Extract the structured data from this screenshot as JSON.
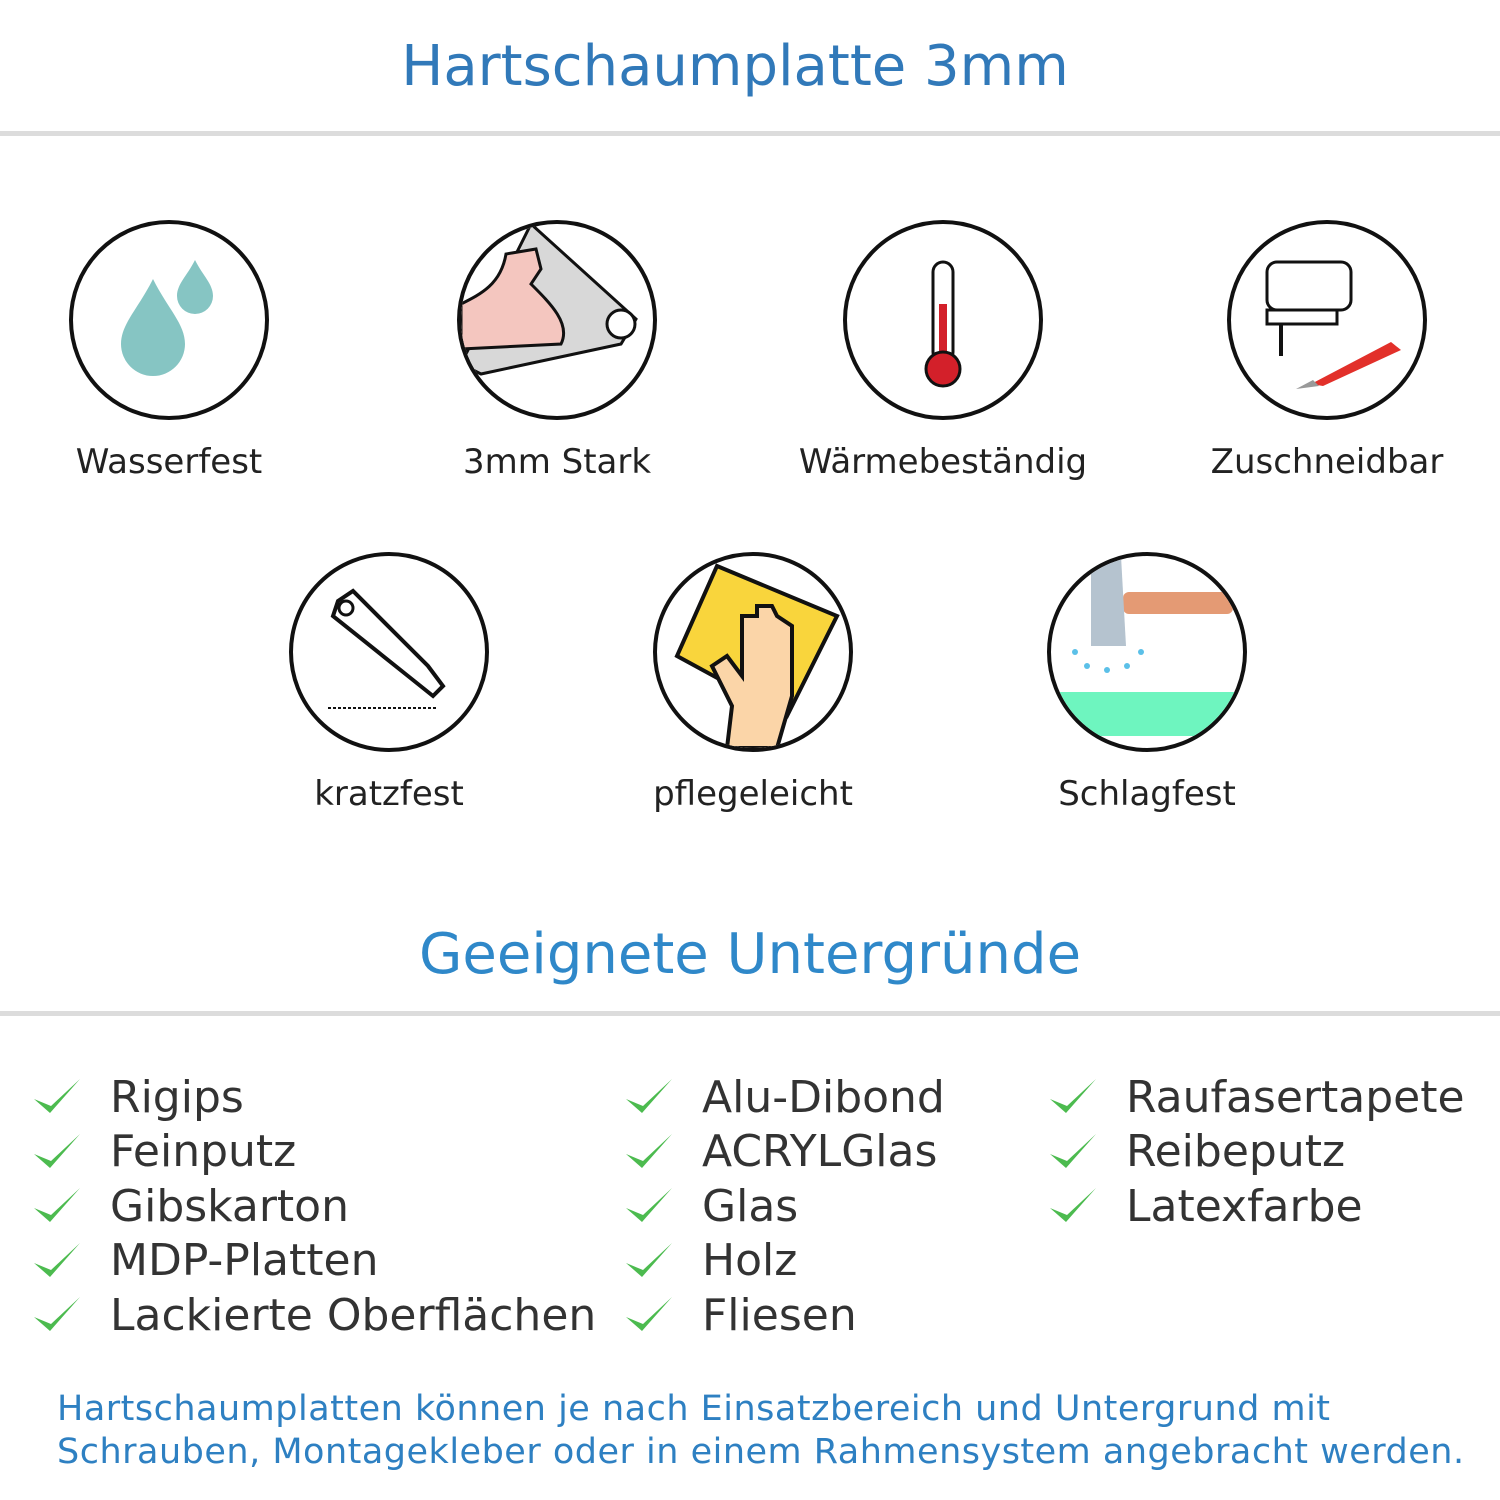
{
  "header": {
    "title": "Hartschaumplatte 3mm"
  },
  "features": [
    {
      "label": "Wasserfest",
      "icon": "water-drops-icon"
    },
    {
      "label": "3mm Stark",
      "icon": "strong-arm-icon"
    },
    {
      "label": "Wärmebeständig",
      "icon": "thermometer-icon"
    },
    {
      "label": "Zuschneidbar",
      "icon": "jigsaw-knife-icon"
    },
    {
      "label": "kratzfest",
      "icon": "cutter-icon"
    },
    {
      "label": "pflegeleicht",
      "icon": "cleaning-hand-icon"
    },
    {
      "label": "Schlagfest",
      "icon": "hammer-icon"
    }
  ],
  "surfaces": {
    "title": "Geeignete Untergründe",
    "check_color": "#4cbb4f",
    "columns": [
      [
        "Rigips",
        "Feinputz",
        "Gibskarton",
        "MDP-Platten",
        "Lackierte Oberflächen"
      ],
      [
        "Alu-Dibond",
        "ACRYLGlas",
        "Glas",
        "Holz",
        "Fliesen"
      ],
      [
        "Raufasertapete",
        "Reibeputz",
        "Latexfarbe"
      ]
    ]
  },
  "footer": {
    "line1": "Hartschaumplatten können je nach Einsatzbereich und Untergrund mit",
    "line2": "Schrauben, Montagekleber oder in einem Rahmensystem angebracht werden."
  },
  "colors": {
    "title": "#3179b9",
    "subtitle": "#2f88c9",
    "footer": "#2e80c2"
  }
}
